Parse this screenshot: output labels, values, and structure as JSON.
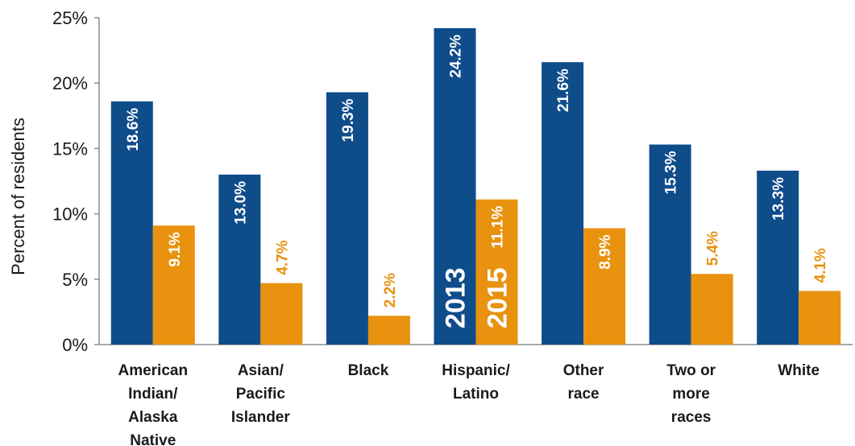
{
  "chart_data": {
    "type": "bar",
    "ylabel": "Percent of residents",
    "ylim": [
      0,
      25
    ],
    "yticks": [
      "0%",
      "5%",
      "10%",
      "15%",
      "20%",
      "25%"
    ],
    "ytick_values": [
      0,
      5,
      10,
      15,
      20,
      25
    ],
    "categories": [
      [
        "American",
        "Indian/",
        "Alaska",
        "Native"
      ],
      [
        "Asian/",
        "Pacific",
        "Islander"
      ],
      [
        "Black"
      ],
      [
        "Hispanic/",
        "Latino"
      ],
      [
        "Other",
        "race"
      ],
      [
        "Two or",
        "more",
        "races"
      ],
      [
        "White"
      ]
    ],
    "series": [
      {
        "name": "2013",
        "color": "#0F4C8A",
        "label_color": "#ffffff",
        "values": [
          18.6,
          13.0,
          19.3,
          24.2,
          21.6,
          15.3,
          13.3
        ],
        "labels": [
          "18.6%",
          "13.0%",
          "19.3%",
          "24.2%",
          "21.6%",
          "15.3%",
          "13.3%"
        ]
      },
      {
        "name": "2015",
        "color": "#E8920F",
        "label_color": "#E8920F",
        "values": [
          9.1,
          4.7,
          2.2,
          11.1,
          8.9,
          5.4,
          4.1
        ],
        "labels": [
          "9.1%",
          "4.7%",
          "2.2%",
          "11.1%",
          "8.9%",
          "5.4%",
          "4.1%"
        ]
      }
    ],
    "grid": false,
    "legend": "in-bar labels on Hispanic/Latino bars"
  }
}
